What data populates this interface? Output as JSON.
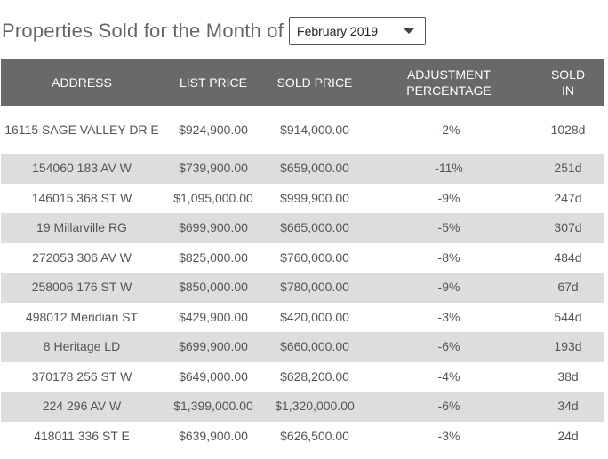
{
  "header": {
    "title": "Properties Sold for the Month of",
    "month_selected": "February 2019"
  },
  "table": {
    "columns": {
      "address": "ADDRESS",
      "list_price": "LIST PRICE",
      "sold_price": "SOLD PRICE",
      "adjustment_line1": "ADJUSTMENT",
      "adjustment_line2": "PERCENTAGE",
      "sold_in_line1": "SOLD",
      "sold_in_line2": "IN"
    },
    "rows": [
      {
        "address": "16115 SAGE VALLEY DR E",
        "list_price": "$924,900.00",
        "sold_price": "$914,000.00",
        "adjustment": "-2%",
        "sold_in": "1028d"
      },
      {
        "address": "154060 183 AV W",
        "list_price": "$739,900.00",
        "sold_price": "$659,000.00",
        "adjustment": "-11%",
        "sold_in": "251d"
      },
      {
        "address": "146015 368 ST W",
        "list_price": "$1,095,000.00",
        "sold_price": "$999,900.00",
        "adjustment": "-9%",
        "sold_in": "247d"
      },
      {
        "address": "19 Millarville RG",
        "list_price": "$699,900.00",
        "sold_price": "$665,000.00",
        "adjustment": "-5%",
        "sold_in": "307d"
      },
      {
        "address": "272053 306 AV W",
        "list_price": "$825,000.00",
        "sold_price": "$760,000.00",
        "adjustment": "-8%",
        "sold_in": "484d"
      },
      {
        "address": "258006 176 ST W",
        "list_price": "$850,000.00",
        "sold_price": "$780,000.00",
        "adjustment": "-9%",
        "sold_in": "67d"
      },
      {
        "address": "498012 Meridian ST",
        "list_price": "$429,900.00",
        "sold_price": "$420,000.00",
        "adjustment": "-3%",
        "sold_in": "544d"
      },
      {
        "address": "8 Heritage LD",
        "list_price": "$699,900.00",
        "sold_price": "$660,000.00",
        "adjustment": "-6%",
        "sold_in": "193d"
      },
      {
        "address": "370178 256 ST W",
        "list_price": "$649,000.00",
        "sold_price": "$628,200.00",
        "adjustment": "-4%",
        "sold_in": "38d"
      },
      {
        "address": "224 296 AV W",
        "list_price": "$1,399,000.00",
        "sold_price": "$1,320,000.00",
        "adjustment": "-6%",
        "sold_in": "34d"
      },
      {
        "address": "418011 336 ST E",
        "list_price": "$639,900.00",
        "sold_price": "$626,500.00",
        "adjustment": "-3%",
        "sold_in": "24d"
      }
    ]
  }
}
